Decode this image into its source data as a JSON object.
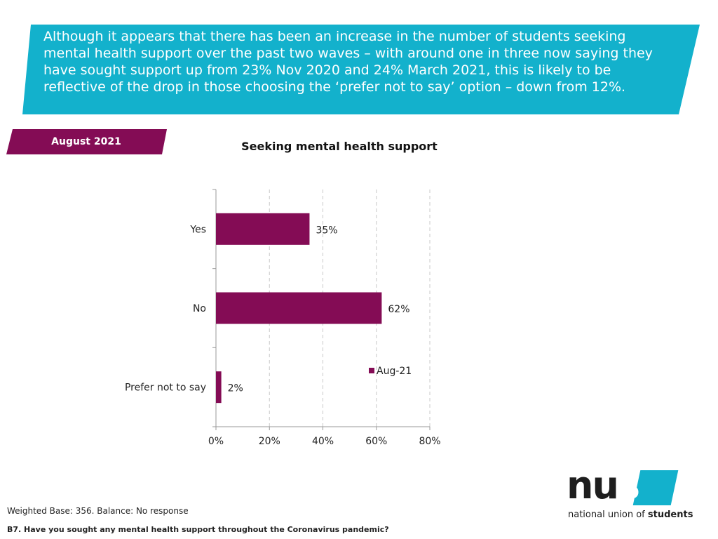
{
  "header": {
    "text": "Although it appears that there has been an increase in the number of students seeking mental health support over the past two waves – with around one in three now saying they have sought support up from 23% Nov 2020 and 24% March 2021, this is likely to be reflective of the drop in those choosing the ‘prefer not to say’ option – down from 12%."
  },
  "date_tag": {
    "label": "August 2021"
  },
  "colors": {
    "banner": "#13b1cc",
    "accent": "#840c55"
  },
  "chart_data": {
    "type": "bar",
    "orientation": "horizontal",
    "title": "Seeking mental health support",
    "categories": [
      "Yes",
      "No",
      "Prefer not to say"
    ],
    "series": [
      {
        "name": "Aug-21",
        "values": [
          35,
          62,
          2
        ]
      }
    ],
    "value_labels": [
      "35%",
      "62%",
      "2%"
    ],
    "xlim": [
      0,
      80
    ],
    "xticks": [
      0,
      20,
      40,
      60,
      80
    ],
    "xtick_labels": [
      "0%",
      "20%",
      "40%",
      "60%",
      "80%"
    ],
    "grid": "vertical-dashed",
    "legend": "right"
  },
  "footer": {
    "base": "Weighted Base: 356. Balance: No response",
    "question": "B7. Have you sought any mental health support throughout the Coronavirus pandemic?"
  },
  "logo": {
    "word_main": "nu",
    "word_s": "s",
    "tagline_start": "national union of ",
    "tagline_bold": "students"
  }
}
